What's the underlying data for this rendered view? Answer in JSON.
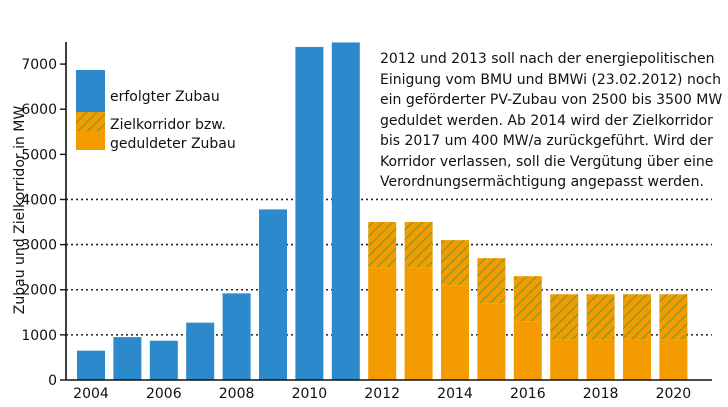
{
  "chart_data": {
    "type": "bar",
    "categories": [
      "2004",
      "2005",
      "2006",
      "2007",
      "2008",
      "2009",
      "2010",
      "2011",
      "2012",
      "2013",
      "2014",
      "2015",
      "2016",
      "2017",
      "2018",
      "2019",
      "2020"
    ],
    "x_tick_labels": [
      "2004",
      "2006",
      "2008",
      "2010",
      "2012",
      "2014",
      "2016",
      "2018",
      "2020"
    ],
    "ylabel": "Zubau und Zielkorridor in MW",
    "ylim": [
      0,
      7400
    ],
    "y_ticks": [
      0,
      1000,
      2000,
      3000,
      4000,
      5000,
      6000,
      7000
    ],
    "grid": "dotted horizontal lines at 1000, 2000, 3000, 4000",
    "legend_placement": "top-left",
    "series": [
      {
        "name": "erfolgter Zubau",
        "color": "#2c89cb",
        "values": [
          650,
          950,
          870,
          1270,
          1920,
          3780,
          7380,
          7480,
          null,
          null,
          null,
          null,
          null,
          null,
          null,
          null,
          null
        ]
      },
      {
        "name": "Zielkorridor bzw. geduldeter Zubau",
        "color": "#f49b00",
        "pattern_color": "#8e9a28",
        "lower": [
          null,
          null,
          null,
          null,
          null,
          null,
          null,
          null,
          2500,
          2500,
          2100,
          1700,
          1300,
          900,
          900,
          900,
          900
        ],
        "upper": [
          null,
          null,
          null,
          null,
          null,
          null,
          null,
          null,
          3500,
          3500,
          3100,
          2700,
          2300,
          1900,
          1900,
          1900,
          1900
        ]
      }
    ],
    "annotation": [
      "2012 und 2013 soll nach der energiepolitischen",
      "Einigung vom BMU und BMWi (23.02.2012) noch",
      "ein geförderter PV-Zubau von 2500 bis 3500 MW",
      "geduldet werden.  Ab 2014 wird der Zielkorridor",
      "bis 2017 um 400 MW/a zurückgeführt.  Wird der",
      "Korridor verlassen, soll die Vergütung über eine",
      "Verordnungsermächtigung angepasst werden."
    ]
  }
}
